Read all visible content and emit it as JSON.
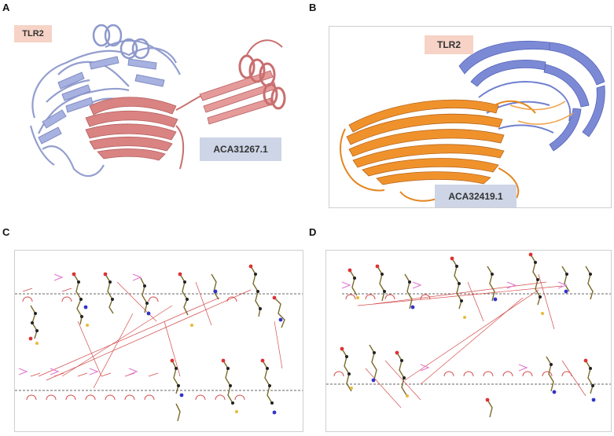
{
  "panels": {
    "a": {
      "letter": "A",
      "receptor_label": "TLR2",
      "ligand_label": "ACA31267.1"
    },
    "b": {
      "letter": "B",
      "receptor_label": "TLR2",
      "ligand_label": "ACA32419.1"
    },
    "c": {
      "letter": "C"
    },
    "d": {
      "letter": "D"
    }
  },
  "colors": {
    "receptor": "#9ea9d8",
    "ligand_a": "#d98383",
    "ligand_b": "#f0922c",
    "receptor_b": "#6f7fd0",
    "label_receptor_bg": "#f6d3c6",
    "label_ligand_bg": "#cdd5e6",
    "hbond_line": "#d44a4a"
  }
}
